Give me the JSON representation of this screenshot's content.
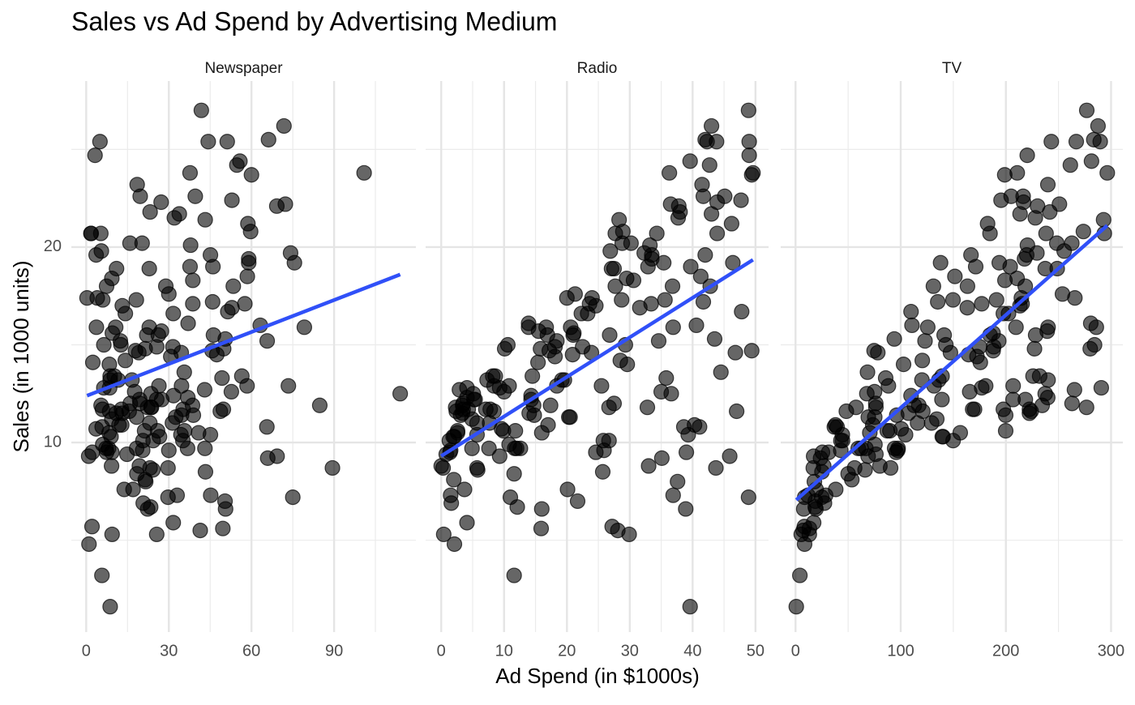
{
  "chart_data": {
    "type": "scatter",
    "title": "Sales vs Ad Spend by Advertising Medium",
    "x_label": "Ad Spend (in $1000s)",
    "y_label": "Sales (in 1000 units)",
    "color": "#000000",
    "ylim": [
      0.3,
      28.5
    ],
    "yticks": [
      10,
      20
    ],
    "y_minor_ticks": [
      5,
      15,
      25
    ],
    "grid": true,
    "y": [
      22.1,
      10.4,
      9.3,
      18.5,
      12.9,
      7.2,
      11.8,
      13.2,
      4.8,
      10.6,
      8.6,
      17.4,
      9.2,
      9.7,
      19,
      22.4,
      12.5,
      24.4,
      11.3,
      14.6,
      18,
      12.5,
      5.6,
      15.5,
      9.7,
      12,
      15,
      15.9,
      18.9,
      10.5,
      21.4,
      11.9,
      9.6,
      17.4,
      9.5,
      12.8,
      25.4,
      14.7,
      10.1,
      21.5,
      16.6,
      17.1,
      20.7,
      12.9,
      8.5,
      14.9,
      10.6,
      23.2,
      14.8,
      9.7,
      11.4,
      10.7,
      22.6,
      21.2,
      20.2,
      23.7,
      5.5,
      13.2,
      23.8,
      18.4,
      8.1,
      24.2,
      15.7,
      14,
      18,
      9.3,
      9.5,
      13.4,
      18.9,
      22.3,
      18.3,
      12.4,
      8.8,
      11,
      17,
      8.7,
      6.9,
      14.2,
      5.3,
      11,
      11.8,
      12.3,
      11.3,
      13.6,
      21.7,
      15.2,
      12,
      16,
      12.9,
      16.7,
      11.2,
      7.3,
      19.4,
      22.2,
      11.5,
      16.9,
      11.7,
      15.5,
      25.4,
      17.2,
      11.7,
      23.8,
      14.8,
      14.7,
      20.7,
      19.2,
      7.2,
      8.7,
      5.3,
      19.8,
      13.4,
      21.8,
      14.1,
      15.9,
      14.6,
      12.6,
      12.2,
      9.4,
      15.9,
      6.6,
      15.5,
      7,
      11.6,
      15.2,
      19.7,
      10.6,
      6.6,
      8.8,
      24.7,
      9.7,
      1.6,
      12.7,
      5.7,
      19.6,
      10.8,
      11.6,
      9.5,
      20.8,
      9.6,
      20.7,
      10.9,
      19.2,
      20.1,
      10.4,
      11.4,
      10.3,
      13.2,
      25.4,
      10.9,
      10.1,
      16.1,
      11.6,
      16.6,
      19,
      15.6,
      3.2,
      15.3,
      10.1,
      7.3,
      12.9,
      14.4,
      13.3,
      14.9,
      18,
      11.9,
      11.9,
      8,
      12.2,
      17.1,
      15,
      8.4,
      14.5,
      7.6,
      11.7,
      11.5,
      27,
      20.2,
      11.7,
      11.8,
      12.6,
      10.5,
      12.2,
      8.7,
      26.2,
      17.6,
      22.6,
      10.3,
      17.3,
      15.9,
      6.7,
      10.8,
      9.9,
      5.9,
      19.6,
      17.3,
      7.6,
      9.7,
      12.8,
      25.5,
      13.4
    ],
    "facets": [
      {
        "name": "Newspaper",
        "xlim": [
          -5.4,
          119.7
        ],
        "xticks": [
          0,
          30,
          60,
          90
        ],
        "x_minor_ticks": [
          15,
          45,
          75,
          105
        ],
        "fit": {
          "x": [
            0.3,
            114
          ],
          "y": [
            12.4,
            18.6
          ],
          "color": "#3050f8"
        },
        "x": [
          69.2,
          45.1,
          69.3,
          58.5,
          58.4,
          75,
          23.5,
          11.6,
          1,
          21.2,
          24.2,
          4,
          65.9,
          7.2,
          46,
          52.9,
          114,
          55.8,
          18.3,
          19.1,
          53.4,
          23.5,
          49.6,
          26.2,
          18.3,
          19.5,
          12.6,
          22.9,
          22.9,
          40.8,
          43.2,
          38.6,
          30,
          0.3,
          7.4,
          8.5,
          5,
          45.7,
          35.1,
          32,
          31.6,
          38.7,
          1.8,
          26.4,
          43.3,
          31.5,
          35.7,
          18.5,
          49.9,
          36.8,
          34.6,
          3.6,
          39.6,
          58.7,
          15.9,
          60,
          41.4,
          16.6,
          37.7,
          9.3,
          21.4,
          54.7,
          27.3,
          8.4,
          28.9,
          0.9,
          2.2,
          10.2,
          11,
          27.2,
          38.7,
          31.7,
          19.3,
          31.3,
          13.1,
          89.4,
          20.7,
          14.2,
          9.4,
          23.1,
          22.3,
          36.9,
          32.5,
          35.6,
          33.8,
          65.7,
          16,
          63.2,
          73.4,
          51.4,
          9.3,
          33,
          59,
          72.3,
          10.9,
          52.9,
          5.9,
          22,
          51.2,
          45.9,
          49.8,
          100.9,
          21.4,
          17.9,
          5.3,
          59,
          29.7,
          23.2,
          25.6,
          5.5,
          56.5,
          23.2,
          2.4,
          10.7,
          34.5,
          52.7,
          25.6,
          14.8,
          79.2,
          22.3,
          46.2,
          50.4,
          15.6,
          12.4,
          74.2,
          25.9,
          50.6,
          9.2,
          3.2,
          43.1,
          8.7,
          43,
          2.1,
          45.1,
          65.6,
          8.5,
          9.3,
          59.7,
          20.5,
          1.7,
          12.9,
          75.6,
          37.9,
          34.4,
          38.9,
          9,
          8.7,
          44.3,
          11.9,
          20.6,
          37,
          48.7,
          14.2,
          37.7,
          9.5,
          5.7,
          50.5,
          24.3,
          45.2,
          34.6,
          30.7,
          49.3,
          25.6,
          7.4,
          5.4,
          84.8,
          21.6,
          19.4,
          57.6,
          6.4,
          18.4,
          47.4,
          17,
          12.8,
          13.1,
          41.8,
          20.3,
          35.2,
          23.7,
          17.6,
          8.3,
          27.4,
          29.7,
          71.8,
          30,
          19.6,
          26.6,
          18.2,
          3.7,
          23.4,
          5.8,
          6,
          31.6,
          3.6,
          6,
          13.8,
          8.1,
          6.4,
          66.2,
          8.7
        ]
      },
      {
        "name": "Radio",
        "xlim": [
          -2.48,
          52.08
        ],
        "xticks": [
          0,
          10,
          20,
          30,
          40,
          50
        ],
        "x_minor_ticks": [
          5,
          15,
          25,
          35,
          45
        ],
        "fit": {
          "x": [
            0,
            49.6
          ],
          "y": [
            9.31,
            19.35
          ],
          "color": "#3050f8"
        },
        "x": [
          37.8,
          39.3,
          45.9,
          41.3,
          10.8,
          48.9,
          32.8,
          19.6,
          2.1,
          2.6,
          5.8,
          24,
          35.1,
          7.6,
          32.9,
          47.7,
          36.6,
          39.6,
          20.5,
          23.9,
          27.7,
          5.1,
          15.9,
          16.9,
          12.6,
          3.5,
          29.3,
          16.7,
          27.1,
          16,
          28.3,
          17.4,
          1.5,
          20,
          1.4,
          4.1,
          43.8,
          49.4,
          26.7,
          37.7,
          22.3,
          33.4,
          27.7,
          8.4,
          25.7,
          22.5,
          9.9,
          41.5,
          15.8,
          11.7,
          3.1,
          9.6,
          41.7,
          46.2,
          28.8,
          49.4,
          28.1,
          19.2,
          49.6,
          29.5,
          2,
          42.7,
          15.5,
          29.6,
          42.8,
          9.3,
          24.6,
          14.5,
          27.5,
          43.9,
          30.6,
          14.3,
          33,
          5.7,
          24.6,
          43.7,
          1.6,
          28.5,
          29.9,
          7.7,
          26.7,
          4.1,
          20.3,
          44.5,
          43,
          18.4,
          27.5,
          40.6,
          25.5,
          47.8,
          4.9,
          1.5,
          33.5,
          36.5,
          14,
          31.6,
          3.5,
          21,
          42.3,
          41.7,
          4.3,
          36.3,
          10.1,
          17.2,
          34.3,
          46.4,
          11,
          0.3,
          0.4,
          26.9,
          8.2,
          38,
          15.4,
          20.6,
          46.8,
          35,
          14.3,
          0.8,
          36.9,
          16,
          26.8,
          21.7,
          2.4,
          34.6,
          32.3,
          11.8,
          38.9,
          0,
          49,
          12,
          39.6,
          2.9,
          27.2,
          33.5,
          38.6,
          47,
          39,
          28.9,
          25.9,
          43.9,
          17,
          35.4,
          33.2,
          5.7,
          14.8,
          1.9,
          7.3,
          49,
          40.3,
          25.8,
          13.9,
          8.4,
          23.3,
          39.7,
          21.1,
          11.6,
          43.5,
          1.3,
          36.9,
          18.4,
          18.1,
          35.8,
          18.1,
          36.8,
          14.7,
          3.4,
          37.6,
          5.2,
          23.6,
          10.6,
          11.6,
          20.9,
          20.1,
          7.1,
          3.4,
          48.9,
          30.2,
          7.8,
          2.3,
          10,
          2.6,
          5.4,
          5.7,
          43,
          21.3,
          45.1,
          2.1,
          28.7,
          13.9,
          12.1,
          41.1,
          10.8,
          4.1,
          42,
          35.6,
          3.7,
          4.9,
          9.3,
          42,
          8.6
        ]
      },
      {
        "name": "TV",
        "xlim": [
          -14.1,
          311.2
        ],
        "xticks": [
          0,
          100,
          200,
          300
        ],
        "x_minor_ticks": [
          50,
          150,
          250
        ],
        "fit": {
          "x": [
            0.7,
            296.4
          ],
          "y": [
            7.06,
            21.11
          ],
          "color": "#3050f8"
        },
        "x": [
          230.1,
          44.5,
          17.2,
          151.5,
          180.8,
          8.7,
          57.5,
          120.2,
          8.6,
          199.8,
          66.1,
          214.7,
          23.8,
          97.5,
          204.1,
          195.4,
          67.8,
          281.4,
          69.2,
          147.3,
          218.4,
          237.4,
          13.2,
          228.3,
          62.3,
          262.9,
          142.9,
          240.1,
          248.8,
          70.6,
          292.9,
          112.9,
          97.2,
          265.6,
          95.7,
          290.7,
          266.9,
          74.7,
          43.1,
          228,
          202.5,
          177,
          293.6,
          206.9,
          25.1,
          175.1,
          89.7,
          239.9,
          227.2,
          66.9,
          199.8,
          100.4,
          216.4,
          182.6,
          262.7,
          198.9,
          7.3,
          136.2,
          210.8,
          210.7,
          53.5,
          261.3,
          239.3,
          102.7,
          131.1,
          69,
          31.5,
          139.3,
          237.4,
          216.8,
          199.1,
          109.8,
          26.8,
          129.4,
          213.4,
          16.9,
          27.5,
          120.5,
          5.4,
          116,
          76.4,
          239.8,
          75.3,
          68.4,
          213.5,
          193.2,
          76.3,
          110.7,
          88.3,
          109.8,
          134.3,
          28.6,
          217.7,
          250.9,
          107.4,
          163.3,
          197.6,
          184.9,
          289.7,
          135.2,
          222.4,
          296.4,
          280.2,
          187.9,
          238.2,
          137.9,
          25,
          90.4,
          13.1,
          255.4,
          225.8,
          241.7,
          175.7,
          209.6,
          78.2,
          75.1,
          139.2,
          76.4,
          125.7,
          19.4,
          141.3,
          18.8,
          224,
          123.1,
          229.5,
          87.2,
          7.8,
          80.2,
          220.3,
          59.6,
          0.7,
          265.2,
          8.4,
          219.8,
          36.9,
          48.3,
          25.6,
          273.7,
          43,
          184.9,
          73.4,
          193.7,
          220.5,
          104.6,
          96.2,
          140.3,
          240.1,
          243.2,
          38,
          44.7,
          280.7,
          121,
          197.6,
          171.3,
          187.8,
          4.1,
          93.9,
          149.8,
          11.7,
          131.7,
          172.5,
          85.7,
          188.4,
          163.5,
          117.2,
          234.5,
          17.9,
          206.8,
          215.4,
          284.3,
          50,
          164.5,
          19.6,
          168.4,
          222.4,
          276.9,
          248.4,
          170.2,
          276.7,
          165.6,
          156.6,
          218.5,
          56.2,
          287.6,
          253.8,
          205,
          139.5,
          191.1,
          286,
          18.7,
          39.5,
          75.5,
          17.2,
          166.8,
          149.7,
          38.2,
          94.2,
          177,
          283.6,
          232.1
        ]
      }
    ]
  }
}
